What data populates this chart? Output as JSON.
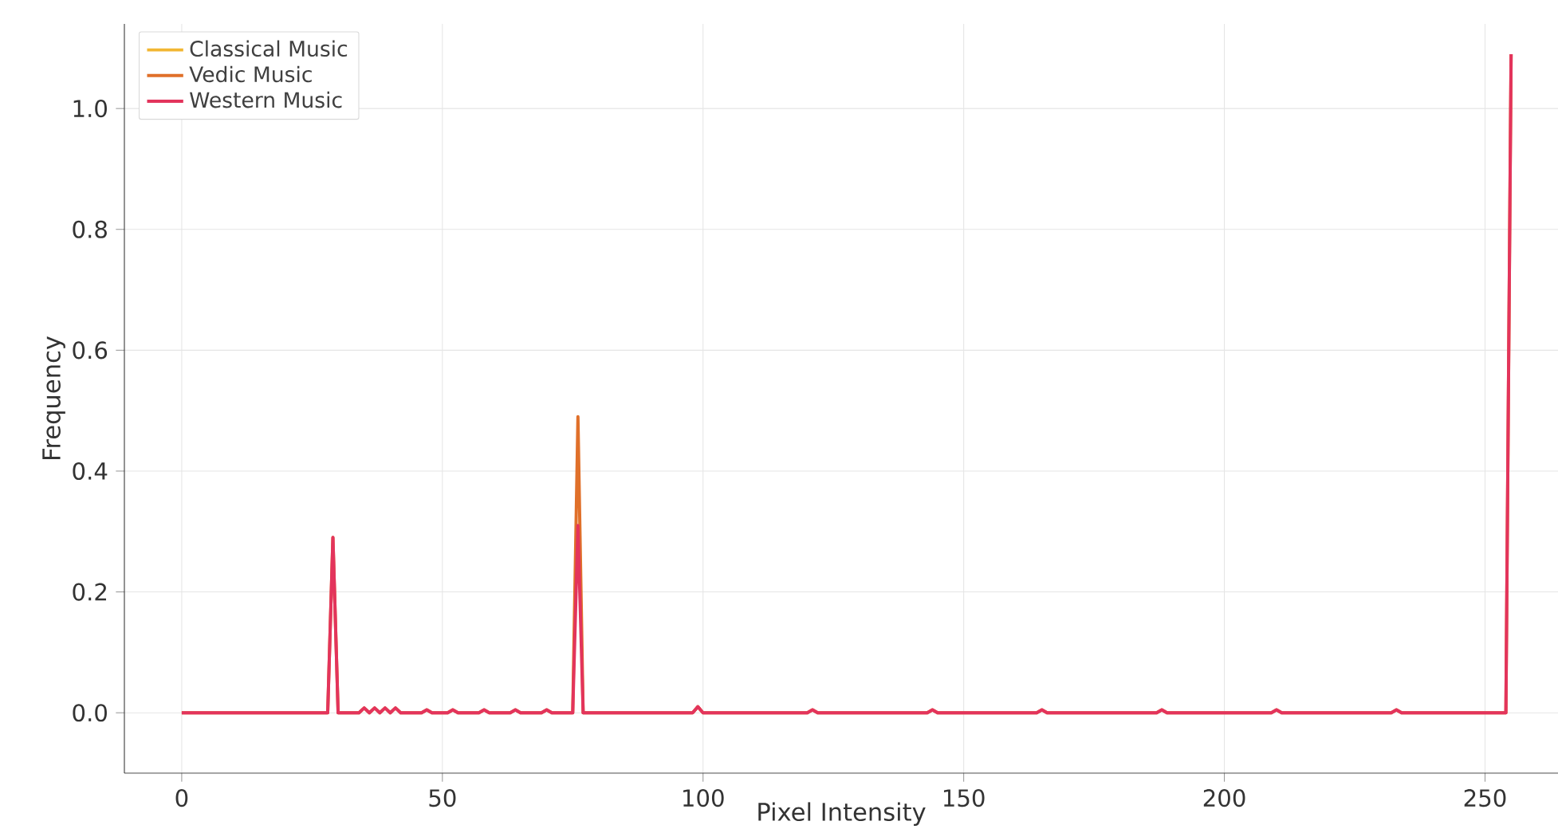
{
  "chart_data": {
    "type": "line",
    "xlabel": "Pixel Intensity",
    "ylabel": "Frequency",
    "x": [
      0,
      28,
      29,
      30,
      34,
      35,
      36,
      37,
      38,
      39,
      40,
      41,
      42,
      46,
      47,
      48,
      51,
      52,
      53,
      57,
      58,
      59,
      63,
      64,
      65,
      69,
      70,
      71,
      75,
      76,
      77,
      98,
      99,
      100,
      120,
      121,
      122,
      143,
      144,
      145,
      164,
      165,
      166,
      187,
      188,
      189,
      209,
      210,
      211,
      232,
      233,
      234,
      254,
      255
    ],
    "series": [
      {
        "name": "Classical Music",
        "color": "#f2b632",
        "values": [
          null,
          null,
          null,
          null,
          null,
          null,
          null,
          null,
          null,
          null,
          null,
          null,
          null,
          null,
          null,
          null,
          null,
          null,
          null,
          null,
          null,
          null,
          null,
          null,
          null,
          null,
          null,
          null,
          null,
          null,
          null,
          null,
          null,
          null,
          null,
          null,
          null,
          null,
          null,
          null,
          null,
          null,
          null,
          null,
          null,
          null,
          null,
          null,
          null,
          null,
          null,
          null,
          null,
          null
        ]
      },
      {
        "name": "Vedic Music",
        "color": "#e0702a",
        "values": [
          0,
          0,
          0.29,
          0,
          0,
          0.008,
          0,
          0.008,
          0,
          0.008,
          0,
          0.008,
          0,
          0,
          0.005,
          0,
          0,
          0.005,
          0,
          0,
          0.005,
          0,
          0,
          0.005,
          0,
          0,
          0.005,
          0,
          0,
          0.49,
          0,
          0,
          0.01,
          0,
          0,
          0.005,
          0,
          0,
          0.005,
          0,
          0,
          0.005,
          0,
          0,
          0.005,
          0,
          0,
          0.005,
          0,
          0,
          0.005,
          0,
          0,
          1.09
        ]
      },
      {
        "name": "Western Music",
        "color": "#e3345c",
        "values": [
          0,
          0,
          0.29,
          0,
          0,
          0.008,
          0,
          0.008,
          0,
          0.008,
          0,
          0.008,
          0,
          0,
          0.005,
          0,
          0,
          0.005,
          0,
          0,
          0.005,
          0,
          0,
          0.005,
          0,
          0,
          0.005,
          0,
          0,
          0.31,
          0,
          0,
          0.01,
          0,
          0,
          0.005,
          0,
          0,
          0.005,
          0,
          0,
          0.005,
          0,
          0,
          0.005,
          0,
          0,
          0.005,
          0,
          0,
          0.005,
          0,
          0,
          1.09
        ]
      }
    ],
    "xlim": [
      -11,
      264
    ],
    "ylim": [
      -0.1,
      1.14
    ],
    "xticks": [
      0,
      50,
      100,
      150,
      200,
      250
    ],
    "yticks": [
      {
        "value": 0,
        "label": "0.0"
      },
      {
        "value": 0.2,
        "label": "0.2"
      },
      {
        "value": 0.4,
        "label": "0.4"
      },
      {
        "value": 0.6,
        "label": "0.6"
      },
      {
        "value": 0.8,
        "label": "0.8"
      },
      {
        "value": 1.0,
        "label": "1.0"
      }
    ],
    "grid": true,
    "legend": "top left",
    "marker": "none",
    "line_style": "solid"
  }
}
